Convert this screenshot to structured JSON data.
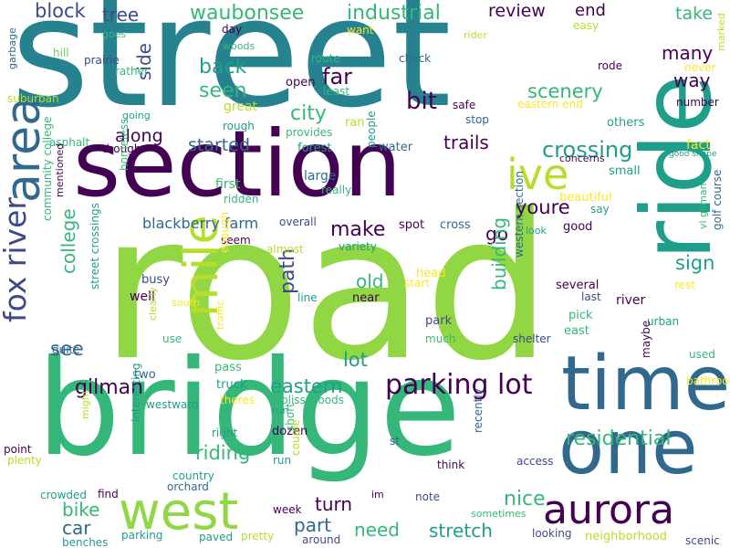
{
  "palette": {
    "teal_dark": "#26828e",
    "indigo": "#482878",
    "purple_dark": "#440154",
    "lime": "#90d743",
    "green": "#35b779",
    "green_teal": "#1f9e89",
    "blue": "#31688e",
    "slate": "#3e4989",
    "yellow_green": "#b5de2b",
    "light_green": "#6ece58",
    "yellow": "#fde725"
  },
  "words": [
    {
      "text": "street"
    },
    {
      "text": "road"
    },
    {
      "text": "section"
    },
    {
      "text": "bridge"
    },
    {
      "text": "ride"
    },
    {
      "text": "area"
    },
    {
      "text": "time"
    },
    {
      "text": "one"
    },
    {
      "text": "west"
    },
    {
      "text": "aurora"
    },
    {
      "text": "mile"
    },
    {
      "text": "fox river"
    },
    {
      "text": "ive"
    },
    {
      "text": "parking lot"
    },
    {
      "text": "waubonsee"
    },
    {
      "text": "industrial"
    },
    {
      "text": "block"
    },
    {
      "text": "tree"
    },
    {
      "text": "review"
    },
    {
      "text": "end"
    },
    {
      "text": "take"
    },
    {
      "text": "many"
    },
    {
      "text": "way"
    },
    {
      "text": "back"
    },
    {
      "text": "seen"
    },
    {
      "text": "far"
    },
    {
      "text": "bit"
    },
    {
      "text": "scenery"
    },
    {
      "text": "city"
    },
    {
      "text": "side"
    },
    {
      "text": "along"
    },
    {
      "text": "started"
    },
    {
      "text": "trails"
    },
    {
      "text": "crossing"
    },
    {
      "text": "youre"
    },
    {
      "text": "make"
    },
    {
      "text": "go"
    },
    {
      "text": "college"
    },
    {
      "text": "path"
    },
    {
      "text": "old"
    },
    {
      "text": "building"
    },
    {
      "text": "sign"
    },
    {
      "text": "see"
    },
    {
      "text": "lot"
    },
    {
      "text": "eastern"
    },
    {
      "text": "gilman"
    },
    {
      "text": "riding"
    },
    {
      "text": "residential"
    },
    {
      "text": "bike"
    },
    {
      "text": "car"
    },
    {
      "text": "turn"
    },
    {
      "text": "part"
    },
    {
      "text": "nice"
    },
    {
      "text": "need"
    },
    {
      "text": "stretch"
    },
    {
      "text": "blackberry farm"
    },
    {
      "text": "garbage"
    },
    {
      "text": "goes"
    },
    {
      "text": "woods"
    },
    {
      "text": "hill"
    },
    {
      "text": "prairie"
    },
    {
      "text": "rather"
    },
    {
      "text": "day"
    },
    {
      "text": "route"
    },
    {
      "text": "check"
    },
    {
      "text": "easy"
    },
    {
      "text": "want"
    },
    {
      "text": "rider"
    },
    {
      "text": "marked"
    },
    {
      "text": "rode"
    },
    {
      "text": "never"
    },
    {
      "text": "suburban"
    },
    {
      "text": "open"
    },
    {
      "text": "least"
    },
    {
      "text": "great"
    },
    {
      "text": "safe"
    },
    {
      "text": "eastern end"
    },
    {
      "text": "number"
    },
    {
      "text": "going"
    },
    {
      "text": "rough"
    },
    {
      "text": "ran"
    },
    {
      "text": "stop"
    },
    {
      "text": "others"
    },
    {
      "text": "asphalt"
    },
    {
      "text": "though"
    },
    {
      "text": "provides"
    },
    {
      "text": "forest"
    },
    {
      "text": "water"
    },
    {
      "text": "fact"
    },
    {
      "text": "concerns"
    },
    {
      "text": "good shape"
    },
    {
      "text": "homeless"
    },
    {
      "text": "large"
    },
    {
      "text": "really"
    },
    {
      "text": "people"
    },
    {
      "text": "small"
    },
    {
      "text": "first"
    },
    {
      "text": "ridden"
    },
    {
      "text": "beautiful"
    },
    {
      "text": "say"
    },
    {
      "text": "community college"
    },
    {
      "text": "mentioned"
    },
    {
      "text": "overall"
    },
    {
      "text": "spot"
    },
    {
      "text": "cross"
    },
    {
      "text": "good"
    },
    {
      "text": "look"
    },
    {
      "text": "seem"
    },
    {
      "text": "variety"
    },
    {
      "text": "golf course"
    },
    {
      "text": "vl gilman"
    },
    {
      "text": "enough"
    },
    {
      "text": "almost"
    },
    {
      "text": "head"
    },
    {
      "text": "start"
    },
    {
      "text": "several"
    },
    {
      "text": "rest"
    },
    {
      "text": "river"
    },
    {
      "text": "street crossings"
    },
    {
      "text": "busy"
    },
    {
      "text": "well"
    },
    {
      "text": "south"
    },
    {
      "text": "line"
    },
    {
      "text": "near"
    },
    {
      "text": "last"
    },
    {
      "text": "pick"
    },
    {
      "text": "western section"
    },
    {
      "text": "park"
    },
    {
      "text": "urban"
    },
    {
      "text": "clearly"
    },
    {
      "text": "traffic"
    },
    {
      "text": "use"
    },
    {
      "text": "much"
    },
    {
      "text": "east"
    },
    {
      "text": "quite"
    },
    {
      "text": "shelter"
    },
    {
      "text": "used"
    },
    {
      "text": "maybe"
    },
    {
      "text": "two"
    },
    {
      "text": "pass"
    },
    {
      "text": "bathroom"
    },
    {
      "text": "truck"
    },
    {
      "text": "westward"
    },
    {
      "text": "theres"
    },
    {
      "text": "run"
    },
    {
      "text": "bliss woods"
    },
    {
      "text": "dozen"
    },
    {
      "text": "right"
    },
    {
      "text": "short"
    },
    {
      "text": "point"
    },
    {
      "text": "plenty"
    },
    {
      "text": "might"
    },
    {
      "text": "interesting"
    },
    {
      "text": "st"
    },
    {
      "text": "access"
    },
    {
      "text": "run"
    },
    {
      "text": "couple"
    },
    {
      "text": "think"
    },
    {
      "text": "recently"
    },
    {
      "text": "country"
    },
    {
      "text": "orchard"
    },
    {
      "text": "crowded"
    },
    {
      "text": "find"
    },
    {
      "text": "week"
    },
    {
      "text": "im"
    },
    {
      "text": "note"
    },
    {
      "text": "sometimes"
    },
    {
      "text": "benches"
    },
    {
      "text": "parking"
    },
    {
      "text": "paved"
    },
    {
      "text": "pretty"
    },
    {
      "text": "around"
    },
    {
      "text": "looking"
    },
    {
      "text": "neighborhood"
    },
    {
      "text": "scenic"
    }
  ]
}
